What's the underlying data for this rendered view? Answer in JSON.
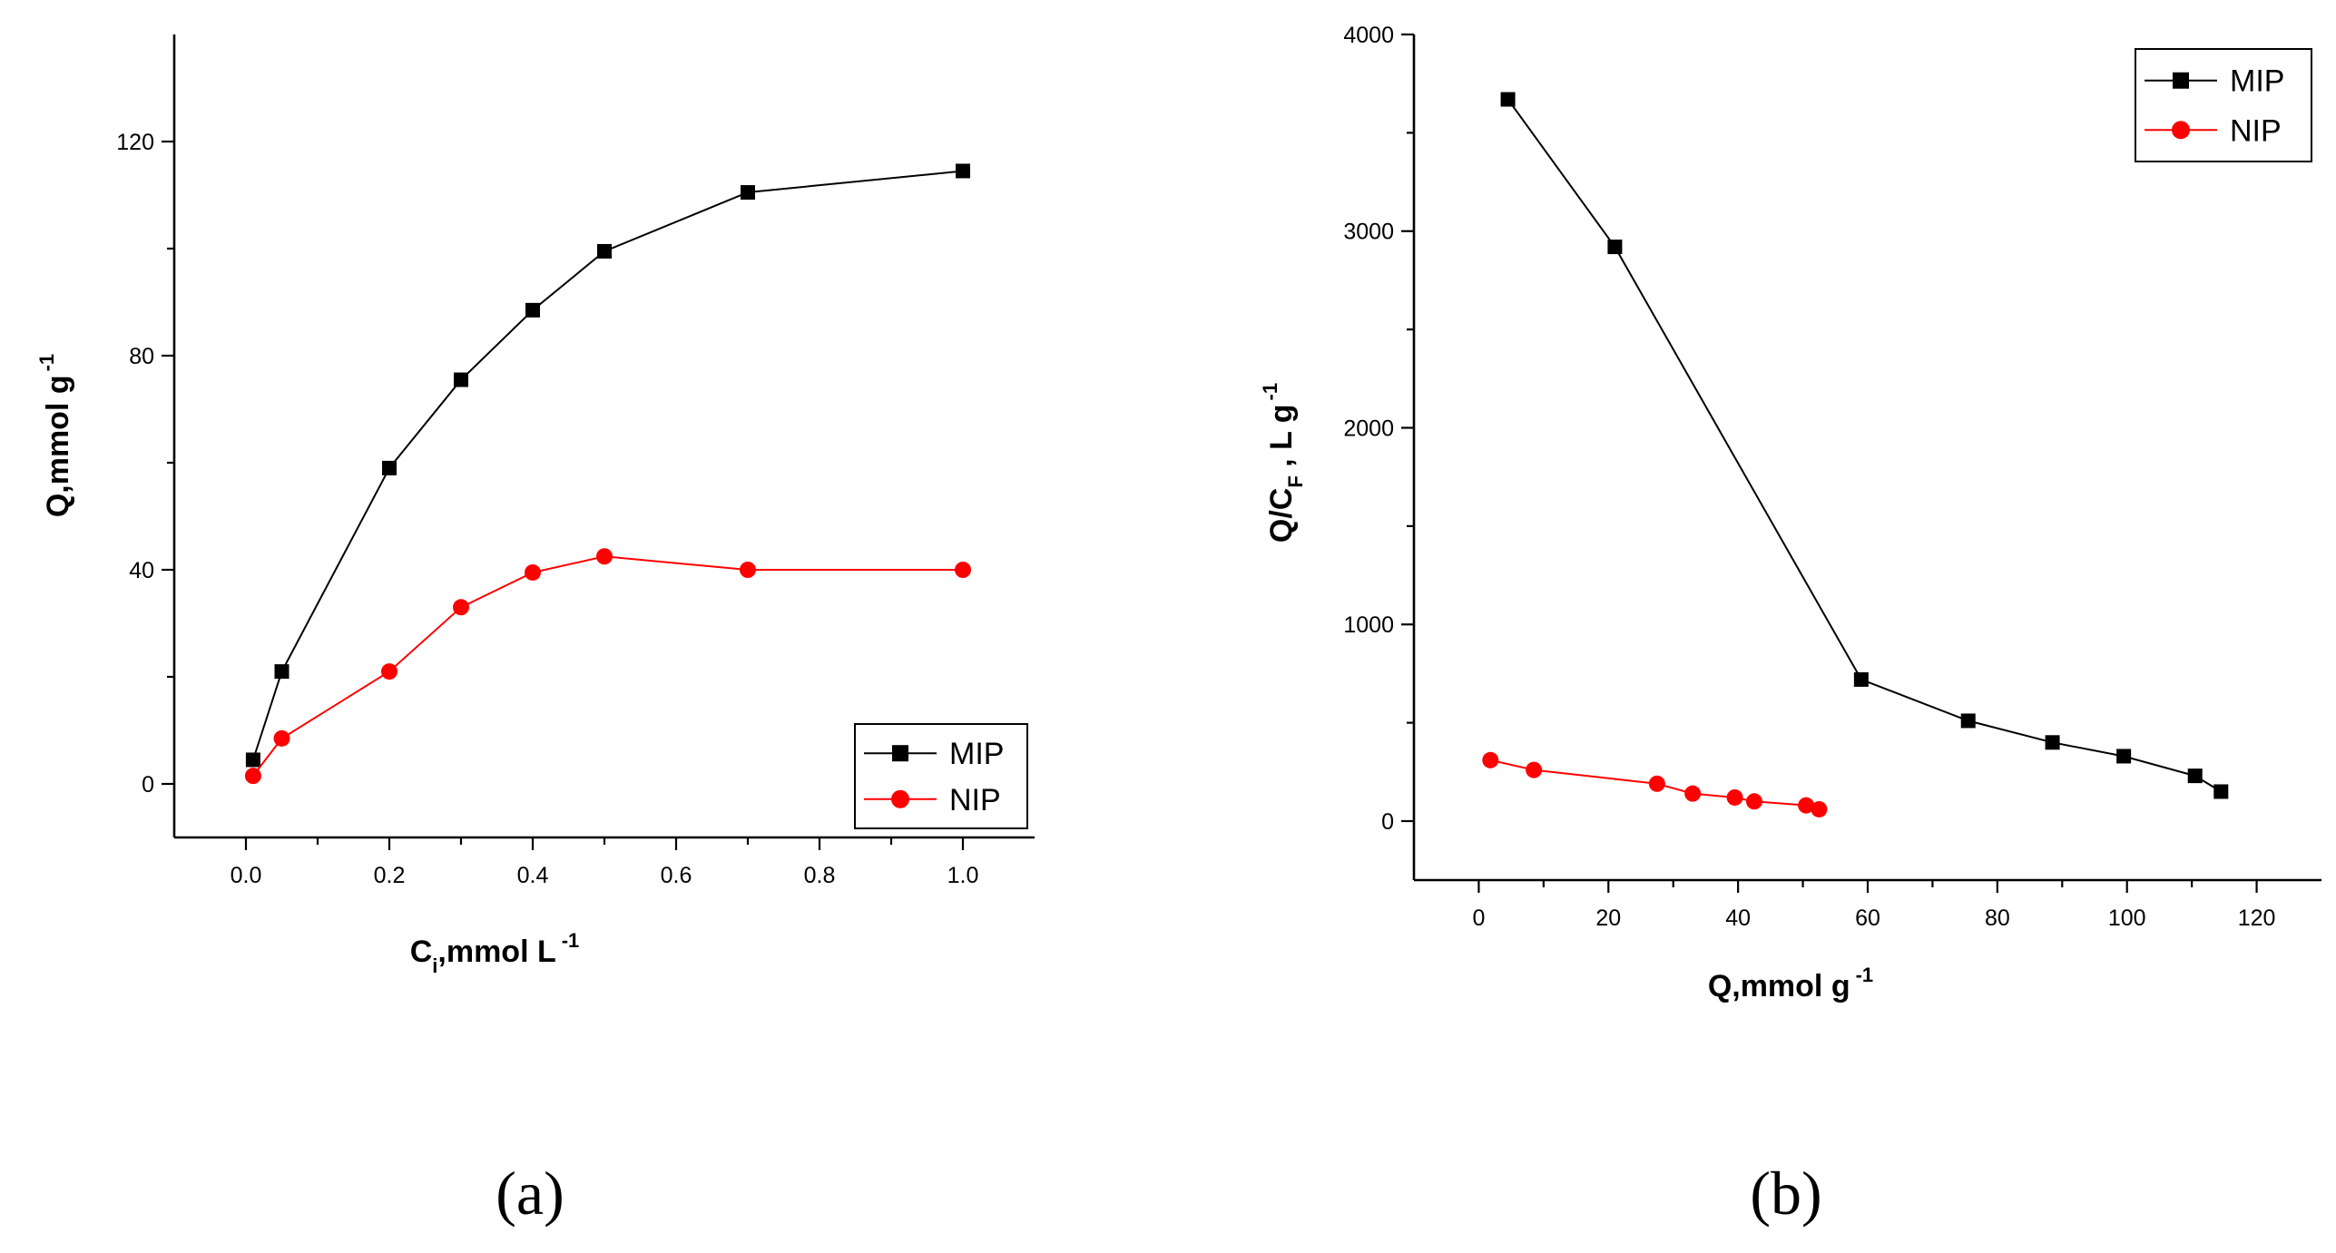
{
  "chart_data": [
    {
      "type": "line",
      "panel_label": "(a)",
      "xlabel": {
        "main": "C",
        "sub": "i",
        "rest": ",mmol L",
        "sup": "-1"
      },
      "ylabel": {
        "main": "Q,mmol g",
        "sup": "-1"
      },
      "xlim": [
        -0.1,
        1.1
      ],
      "ylim": [
        -10,
        140
      ],
      "xticks": [
        0.0,
        0.2,
        0.4,
        0.6,
        0.8,
        1.0
      ],
      "xtick_labels": [
        "0.0",
        "0.2",
        "0.4",
        "0.6",
        "0.8",
        "1.0"
      ],
      "yticks": [
        0,
        40,
        80,
        120
      ],
      "ytick_labels": [
        "0",
        "40",
        "80",
        "120"
      ],
      "legend_position": "bottom-right",
      "series": [
        {
          "name": "MIP",
          "color": "#000000",
          "marker": "square",
          "x": [
            0.01,
            0.05,
            0.2,
            0.3,
            0.4,
            0.5,
            0.7,
            1.0
          ],
          "y": [
            4.5,
            21,
            59,
            75.5,
            88.5,
            99.5,
            110.5,
            114.5
          ]
        },
        {
          "name": "NIP",
          "color": "#ff0000",
          "marker": "circle",
          "x": [
            0.01,
            0.05,
            0.2,
            0.3,
            0.4,
            0.5,
            0.7,
            1.0
          ],
          "y": [
            1.5,
            8.5,
            21,
            33,
            39.5,
            42.5,
            40,
            40
          ]
        }
      ]
    },
    {
      "type": "line",
      "panel_label": "(b)",
      "xlabel": {
        "main": "Q,mmol g",
        "sup": "-1"
      },
      "ylabel": {
        "main": "Q/C",
        "sub": "F",
        "rest": " , L g",
        "sup": "-1"
      },
      "xlim": [
        -10,
        130
      ],
      "ylim": [
        -300,
        4000
      ],
      "xticks": [
        0,
        20,
        40,
        60,
        80,
        100,
        120
      ],
      "xtick_labels": [
        "0",
        "20",
        "40",
        "60",
        "80",
        "100",
        "120"
      ],
      "yticks": [
        0,
        1000,
        2000,
        3000,
        4000
      ],
      "ytick_labels": [
        "0",
        "1000",
        "2000",
        "3000",
        "4000"
      ],
      "legend_position": "top-right",
      "series": [
        {
          "name": "MIP",
          "color": "#000000",
          "marker": "square",
          "x": [
            4.5,
            21,
            59,
            75.5,
            88.5,
            99.5,
            110.5,
            114.5
          ],
          "y": [
            3670,
            2920,
            720,
            510,
            400,
            330,
            230,
            150
          ]
        },
        {
          "name": "NIP",
          "color": "#ff0000",
          "marker": "circle",
          "x": [
            1.8,
            8.5,
            27.5,
            33,
            39.5,
            42.5,
            50.5,
            52.5
          ],
          "y": [
            310,
            260,
            190,
            140,
            120,
            100,
            80,
            60
          ]
        }
      ]
    }
  ]
}
